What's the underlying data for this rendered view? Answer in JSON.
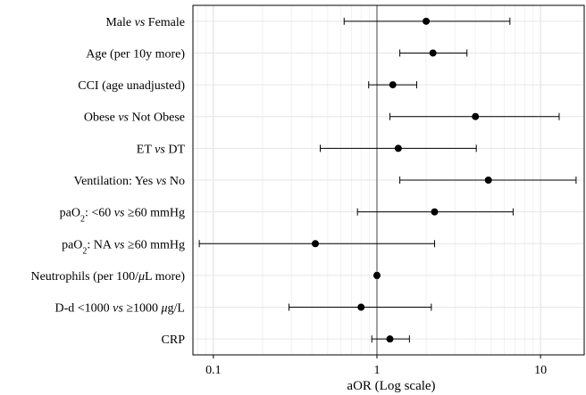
{
  "chart_data": {
    "type": "forest",
    "xlabel": "aOR (Log scale)",
    "x_scale": "log",
    "xlim": [
      0.075,
      18.5
    ],
    "x_ticks": [
      {
        "value": 0.1,
        "label": "0.1"
      },
      {
        "value": 1,
        "label": "1"
      },
      {
        "value": 10,
        "label": "10"
      }
    ],
    "reference_line": 1,
    "grid": true,
    "rows": [
      {
        "parts": [
          {
            "t": "Male "
          },
          {
            "t": "vs",
            "i": true
          },
          {
            "t": " Female"
          }
        ],
        "or": 2.0,
        "lo": 0.63,
        "hi": 6.5
      },
      {
        "parts": [
          {
            "t": "Age (per 10y more)"
          }
        ],
        "or": 2.2,
        "lo": 1.38,
        "hi": 3.55
      },
      {
        "parts": [
          {
            "t": "CCI (age unadjusted)"
          }
        ],
        "or": 1.25,
        "lo": 0.89,
        "hi": 1.75
      },
      {
        "parts": [
          {
            "t": "Obese "
          },
          {
            "t": "vs",
            "i": true
          },
          {
            "t": " Not Obese"
          }
        ],
        "or": 4.0,
        "lo": 1.2,
        "hi": 13.0
      },
      {
        "parts": [
          {
            "t": "ET "
          },
          {
            "t": "vs",
            "i": true
          },
          {
            "t": " DT"
          }
        ],
        "or": 1.35,
        "lo": 0.45,
        "hi": 4.05
      },
      {
        "parts": [
          {
            "t": "Ventilation: Yes "
          },
          {
            "t": "vs",
            "i": true
          },
          {
            "t": " No"
          }
        ],
        "or": 4.8,
        "lo": 1.38,
        "hi": 16.5
      },
      {
        "parts": [
          {
            "t": "paO"
          },
          {
            "t": "2",
            "sub": true
          },
          {
            "t": ": <60 "
          },
          {
            "t": "vs",
            "i": true
          },
          {
            "t": " ≥60 mmHg"
          }
        ],
        "or": 2.25,
        "lo": 0.76,
        "hi": 6.8
      },
      {
        "parts": [
          {
            "t": "paO"
          },
          {
            "t": "2",
            "sub": true
          },
          {
            "t": ": NA "
          },
          {
            "t": "vs",
            "i": true
          },
          {
            "t": " ≥60 mmHg"
          }
        ],
        "or": 0.42,
        "lo": 0.082,
        "hi": 2.25
      },
      {
        "parts": [
          {
            "t": "Neutrophils (per 100/"
          },
          {
            "t": "μ",
            "i": true
          },
          {
            "t": "L more)"
          }
        ],
        "or": 1.0,
        "lo": 0.98,
        "hi": 1.02
      },
      {
        "parts": [
          {
            "t": "D-d <1000 "
          },
          {
            "t": "vs",
            "i": true
          },
          {
            "t": " ≥1000 "
          },
          {
            "t": "μ",
            "i": true
          },
          {
            "t": "g/L"
          }
        ],
        "or": 0.8,
        "lo": 0.29,
        "hi": 2.15
      },
      {
        "parts": [
          {
            "t": "CRP"
          }
        ],
        "or": 1.2,
        "lo": 0.93,
        "hi": 1.58
      }
    ]
  }
}
